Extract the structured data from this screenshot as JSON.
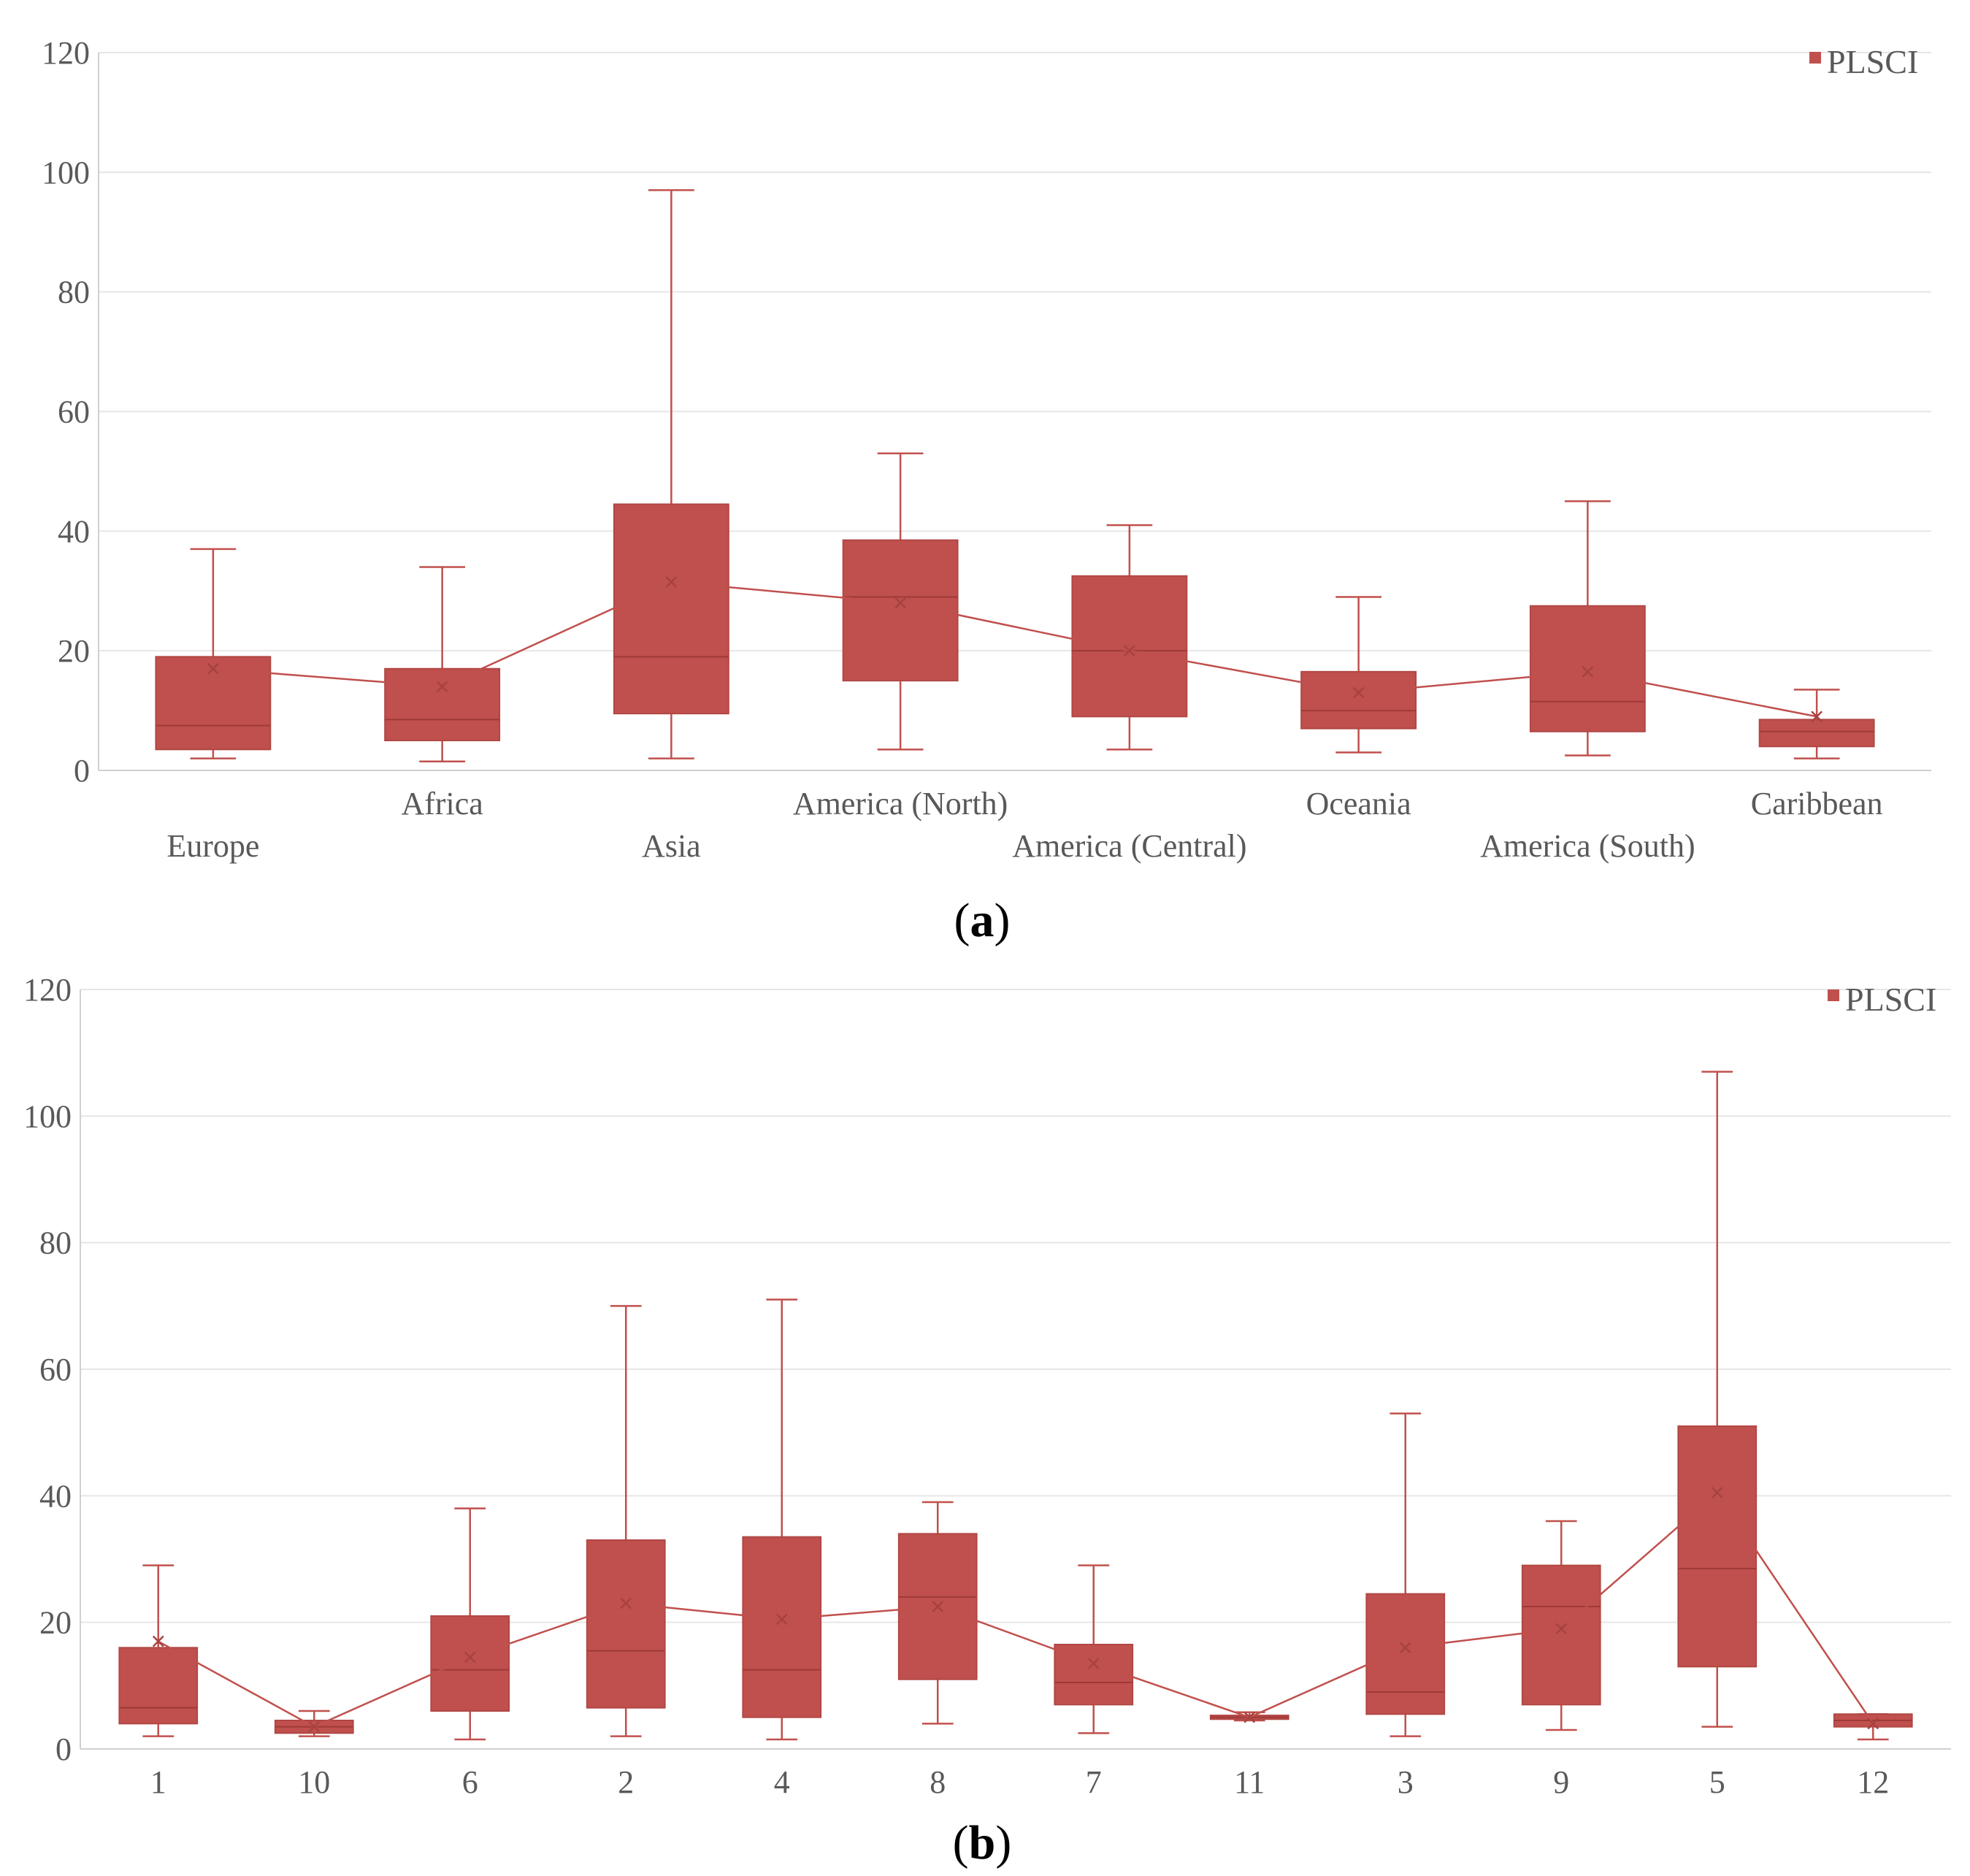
{
  "colors": {
    "box_fill": "#c0504d",
    "box_stroke": "#b04744",
    "whisker": "#c0504d",
    "gridline": "#e6e6e6",
    "axis": "#d0d0d0"
  },
  "chart_data": [
    {
      "id": "a",
      "type": "box",
      "panel_label": {
        "open": "(",
        "letter": "a",
        "close": ")"
      },
      "legend": "PLSCI",
      "legend_position": "top-right",
      "ylim": [
        0,
        120
      ],
      "yticks": [
        "0",
        "20",
        "40",
        "60",
        "80",
        "100",
        "120"
      ],
      "categories": [
        "Europe",
        "Africa",
        "Asia",
        "America (North)",
        "America (Central)",
        "Oceania",
        "America (South)",
        "Caribbean"
      ],
      "label_rows": [
        1,
        0,
        1,
        0,
        1,
        0,
        1,
        0
      ],
      "boxes": [
        {
          "min": 2,
          "q1": 3.5,
          "median": 7.5,
          "q3": 19,
          "max": 37,
          "mean": 17
        },
        {
          "min": 1.5,
          "q1": 5,
          "median": 8.5,
          "q3": 17,
          "max": 34,
          "mean": 14
        },
        {
          "min": 2,
          "q1": 9.5,
          "median": 19,
          "q3": 44.5,
          "max": 97,
          "mean": 31.5
        },
        {
          "min": 3.5,
          "q1": 15,
          "median": 29,
          "q3": 38.5,
          "max": 53,
          "mean": 28
        },
        {
          "min": 3.5,
          "q1": 9,
          "median": 20,
          "q3": 32.5,
          "max": 41,
          "mean": 20
        },
        {
          "min": 3,
          "q1": 7,
          "median": 10,
          "q3": 16.5,
          "max": 29,
          "mean": 13
        },
        {
          "min": 2.5,
          "q1": 6.5,
          "median": 11.5,
          "q3": 27.5,
          "max": 45,
          "mean": 16.5
        },
        {
          "min": 2,
          "q1": 4,
          "median": 6.5,
          "q3": 8.5,
          "max": 13.5,
          "mean": 9
        }
      ]
    },
    {
      "id": "b",
      "type": "box",
      "panel_label": {
        "open": "(",
        "letter": "b",
        "close": ")"
      },
      "legend": "PLSCI",
      "legend_position": "top-right",
      "ylim": [
        0,
        120
      ],
      "yticks": [
        "0",
        "20",
        "40",
        "60",
        "80",
        "100",
        "120"
      ],
      "categories": [
        "1",
        "10",
        "6",
        "2",
        "4",
        "8",
        "7",
        "11",
        "3",
        "9",
        "5",
        "12"
      ],
      "label_rows": [
        0,
        0,
        0,
        0,
        0,
        0,
        0,
        0,
        0,
        0,
        0,
        0
      ],
      "boxes": [
        {
          "min": 2,
          "q1": 4,
          "median": 6.5,
          "q3": 16,
          "max": 29,
          "mean": 17
        },
        {
          "min": 2,
          "q1": 2.5,
          "median": 3.5,
          "q3": 4.5,
          "max": 6,
          "mean": 3.5
        },
        {
          "min": 1.5,
          "q1": 6,
          "median": 12.5,
          "q3": 21,
          "max": 38,
          "mean": 14.5
        },
        {
          "min": 2,
          "q1": 6.5,
          "median": 15.5,
          "q3": 33,
          "max": 70,
          "mean": 23
        },
        {
          "min": 1.5,
          "q1": 5,
          "median": 12.5,
          "q3": 33.5,
          "max": 71,
          "mean": 20.5
        },
        {
          "min": 4,
          "q1": 11,
          "median": 24,
          "q3": 34,
          "max": 39,
          "mean": 22.5
        },
        {
          "min": 2.5,
          "q1": 7,
          "median": 10.5,
          "q3": 16.5,
          "max": 29,
          "mean": 13.5
        },
        {
          "min": 4.5,
          "q1": 4.7,
          "median": 5,
          "q3": 5.3,
          "max": 5.8,
          "mean": 5
        },
        {
          "min": 2,
          "q1": 5.5,
          "median": 9,
          "q3": 24.5,
          "max": 53,
          "mean": 16
        },
        {
          "min": 3,
          "q1": 7,
          "median": 22.5,
          "q3": 29,
          "max": 36,
          "mean": 19
        },
        {
          "min": 3.5,
          "q1": 13,
          "median": 28.5,
          "q3": 51,
          "max": 107,
          "mean": 40.5
        },
        {
          "min": 1.5,
          "q1": 3.5,
          "median": 4.5,
          "q3": 5.5,
          "max": 5.5,
          "mean": 4
        }
      ]
    }
  ]
}
